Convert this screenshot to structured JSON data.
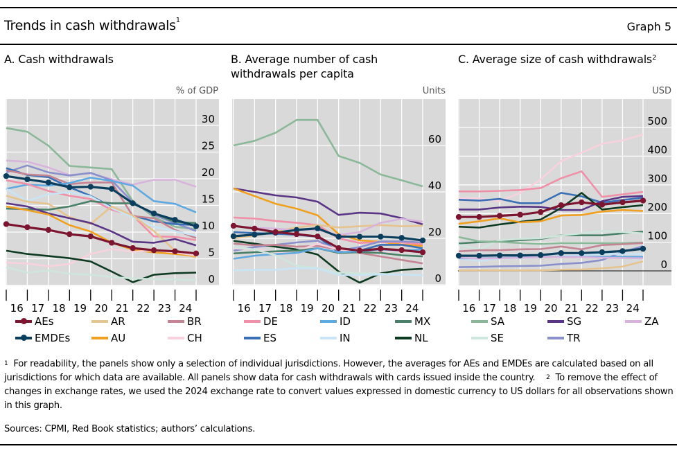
{
  "header": {
    "title": "Trends in cash withdrawals",
    "title_footnote": "1",
    "graph_number": "Graph 5"
  },
  "panels": [
    {
      "title": "A. Cash withdrawals",
      "footnote": "",
      "unit": "% of GDP"
    },
    {
      "title": "B. Average number of cash withdrawals per capita",
      "footnote": "",
      "unit": "Units"
    },
    {
      "title": "C. Average size of cash withdrawals",
      "footnote": "2",
      "unit": "USD"
    }
  ],
  "legend": [
    {
      "key": "AEs",
      "label": "AEs",
      "color": "#7b1530",
      "markers": true
    },
    {
      "key": "EMDEs",
      "label": "EMDEs",
      "color": "#0b3d5c",
      "markers": true
    },
    {
      "key": "AR",
      "label": "AR",
      "color": "#e5c490",
      "markers": false
    },
    {
      "key": "AU",
      "label": "AU",
      "color": "#f0a020",
      "markers": false
    },
    {
      "key": "BR",
      "label": "BR",
      "color": "#c48494",
      "markers": false
    },
    {
      "key": "CH",
      "label": "CH",
      "color": "#f8d2dc",
      "markers": false
    },
    {
      "key": "DE",
      "label": "DE",
      "color": "#f090a8",
      "markers": false
    },
    {
      "key": "ES",
      "label": "ES",
      "color": "#3a6fb5",
      "markers": false
    },
    {
      "key": "ID",
      "label": "ID",
      "color": "#60a8e0",
      "markers": false
    },
    {
      "key": "IN",
      "label": "IN",
      "color": "#c8e4f5",
      "markers": false
    },
    {
      "key": "MX",
      "label": "MX",
      "color": "#4a8068",
      "markers": false
    },
    {
      "key": "NL",
      "label": "NL",
      "color": "#0e3a22",
      "markers": false
    },
    {
      "key": "SA",
      "label": "SA",
      "color": "#8cb89a",
      "markers": false
    },
    {
      "key": "SE",
      "label": "SE",
      "color": "#cfe6dc",
      "markers": false
    },
    {
      "key": "SG",
      "label": "SG",
      "color": "#5a3585",
      "markers": false
    },
    {
      "key": "TR",
      "label": "TR",
      "color": "#8a90cc",
      "markers": false
    },
    {
      "key": "ZA",
      "label": "ZA",
      "color": "#d8b4dc",
      "markers": false
    }
  ],
  "chart_data": [
    {
      "type": "line",
      "title": "A. Cash withdrawals",
      "ylabel": "% of GDP",
      "xlabel": "",
      "x_tick_labels": [
        "16",
        "17",
        "18",
        "19",
        "20",
        "21",
        "22",
        "23",
        "24"
      ],
      "n_points": 10,
      "ylim": [
        0,
        30
      ],
      "yticks": [
        0,
        5,
        10,
        15,
        20,
        25,
        30
      ],
      "y_axis_side": "right",
      "grid": true,
      "series": [
        {
          "name": "SA",
          "values": [
            29.5,
            28.8,
            26.2,
            22.4,
            22.1,
            21.8,
            15.8,
            12.8,
            11.0,
            10.5
          ]
        },
        {
          "name": "ZA",
          "values": [
            23.4,
            23.2,
            22.1,
            20.7,
            21.0,
            19.9,
            18.9,
            19.8,
            19.8,
            18.5
          ]
        },
        {
          "name": "TR",
          "values": [
            21.2,
            22.5,
            21.2,
            20.6,
            21.1,
            19.7,
            15.6,
            13.2,
            11.7,
            10.2
          ]
        },
        {
          "name": "ES",
          "values": [
            22.0,
            20.7,
            20.3,
            18.4,
            16.8,
            14.7,
            13.1,
            12.0,
            11.5,
            11.3
          ]
        },
        {
          "name": "BR",
          "values": [
            21.6,
            20.8,
            20.6,
            19.0,
            19.3,
            19.3,
            13.0,
            12.6,
            10.4,
            8.9
          ]
        },
        {
          "name": "ID",
          "values": [
            18.1,
            18.9,
            18.7,
            19.2,
            20.2,
            19.6,
            18.7,
            15.8,
            15.3,
            13.7
          ]
        },
        {
          "name": "DE",
          "values": [
            19.7,
            19.0,
            17.7,
            16.8,
            16.2,
            14.2,
            13.1,
            9.2,
            9.1,
            8.5
          ]
        },
        {
          "name": "IN",
          "values": [
            18.1,
            15.8,
            17.1,
            17.5,
            16.7,
            14.5,
            12.8,
            11.0,
            10.2,
            9.3
          ]
        },
        {
          "name": "AR",
          "values": [
            16.8,
            15.7,
            15.3,
            12.8,
            11.5,
            14.8,
            13.1,
            10.2,
            6.5,
            5.2
          ]
        },
        {
          "name": "MX",
          "values": [
            14.4,
            14.3,
            14.2,
            14.8,
            15.8,
            15.4,
            15.4,
            13.5,
            11.9,
            11.7
          ]
        },
        {
          "name": "SG",
          "values": [
            15.4,
            14.8,
            13.5,
            12.6,
            11.7,
            10.1,
            8.2,
            8.0,
            8.7,
            7.5
          ]
        },
        {
          "name": "AU",
          "values": [
            14.8,
            14.1,
            13.3,
            11.3,
            10.1,
            8.0,
            6.7,
            6.2,
            5.9,
            5.5
          ]
        },
        {
          "name": "CH",
          "values": [
            4.3,
            4.1,
            3.6,
            4.0,
            5.9,
            6.8,
            6.3,
            6.6,
            6.2,
            5.6
          ]
        },
        {
          "name": "NL",
          "values": [
            6.5,
            5.9,
            5.5,
            5.1,
            4.5,
            2.6,
            0.6,
            2.0,
            2.3,
            2.4
          ]
        },
        {
          "name": "SE",
          "values": [
            3.4,
            2.4,
            2.8,
            2.2,
            2.0,
            1.6,
            1.3,
            1.2,
            1.1,
            1.0
          ]
        },
        {
          "name": "EMDEs",
          "values": [
            20.5,
            19.9,
            19.3,
            18.4,
            18.5,
            18.1,
            15.4,
            13.5,
            12.3,
            11.1
          ]
        },
        {
          "name": "AEs",
          "values": [
            11.5,
            10.9,
            10.4,
            9.6,
            9.2,
            8.0,
            7.0,
            6.6,
            6.4,
            6.0
          ]
        }
      ]
    },
    {
      "type": "line",
      "title": "B. Average number of cash withdrawals per capita",
      "ylabel": "Units",
      "xlabel": "",
      "x_tick_labels": [
        "16",
        "17",
        "18",
        "19",
        "20",
        "21",
        "22",
        "23",
        "24"
      ],
      "n_points": 10,
      "ylim": [
        0,
        80
      ],
      "yticks": [
        0,
        20,
        40,
        60
      ],
      "y_axis_side": "right",
      "grid": true,
      "series": [
        {
          "name": "SA",
          "values": [
            60.0,
            62.0,
            65.5,
            71.0,
            71.0,
            55.5,
            52.5,
            47.5,
            45.0,
            42.4
          ]
        },
        {
          "name": "SG",
          "values": [
            41.5,
            40.0,
            38.5,
            37.6,
            35.8,
            30.1,
            31.0,
            30.7,
            28.7,
            26.0
          ]
        },
        {
          "name": "AU",
          "values": [
            41.5,
            38.2,
            34.9,
            32.8,
            29.9,
            21.8,
            19.1,
            18.5,
            17.3,
            16.7
          ]
        },
        {
          "name": "DE",
          "values": [
            29.0,
            28.5,
            27.5,
            26.7,
            25.7,
            20.0,
            18.0,
            18.4,
            18.2,
            17.4
          ]
        },
        {
          "name": "AR",
          "values": [
            20.0,
            21.2,
            23.0,
            24.7,
            25.7,
            24.7,
            25.2,
            25.7,
            25.2,
            25.4
          ]
        },
        {
          "name": "ZA",
          "values": [
            25.2,
            24.5,
            24.2,
            23.4,
            23.7,
            21.4,
            22.7,
            26.7,
            28.4,
            27.2
          ]
        },
        {
          "name": "ES",
          "values": [
            22.7,
            22.2,
            22.0,
            21.5,
            20.7,
            14.0,
            14.7,
            17.2,
            17.2,
            15.7
          ]
        },
        {
          "name": "TR",
          "values": [
            14.7,
            16.2,
            17.2,
            18.2,
            19.0,
            14.7,
            16.2,
            18.7,
            18.7,
            18.2
          ]
        },
        {
          "name": "NL",
          "values": [
            18.9,
            17.7,
            16.4,
            15.2,
            13.0,
            5.7,
            0.9,
            4.9,
            6.4,
            6.9
          ]
        },
        {
          "name": "BR",
          "values": [
            17.7,
            17.0,
            17.2,
            16.4,
            16.7,
            15.2,
            13.7,
            12.2,
            10.7,
            9.2
          ]
        },
        {
          "name": "CH",
          "values": [
            15.7,
            15.2,
            14.0,
            14.4,
            17.7,
            15.2,
            14.0,
            14.7,
            14.4,
            14.2
          ]
        },
        {
          "name": "MX",
          "values": [
            13.5,
            14.0,
            14.4,
            14.7,
            15.7,
            13.7,
            14.0,
            13.7,
            12.7,
            12.2
          ]
        },
        {
          "name": "ID",
          "values": [
            11.2,
            12.5,
            13.2,
            13.7,
            15.7,
            14.0,
            14.4,
            15.2,
            14.7,
            15.2
          ]
        },
        {
          "name": "SE",
          "values": [
            16.2,
            15.2,
            12.7,
            8.2,
            7.2,
            5.2,
            5.0,
            4.7,
            4.4,
            4.2
          ]
        },
        {
          "name": "IN",
          "values": [
            6.2,
            6.4,
            6.4,
            7.2,
            7.0,
            4.2,
            4.2,
            4.4,
            4.4,
            4.0
          ]
        },
        {
          "name": "EMDEs",
          "values": [
            20.9,
            21.6,
            22.4,
            23.6,
            24.3,
            20.7,
            20.7,
            20.7,
            20.2,
            19.1
          ]
        },
        {
          "name": "AEs",
          "values": [
            25.4,
            24.2,
            22.7,
            21.8,
            20.8,
            15.8,
            14.7,
            15.5,
            14.9,
            14.0
          ]
        }
      ]
    },
    {
      "type": "line",
      "title": "C. Average size of cash withdrawals",
      "ylabel": "USD",
      "xlabel": "",
      "x_tick_labels": [
        "16",
        "17",
        "18",
        "19",
        "20",
        "21",
        "22",
        "23",
        "24"
      ],
      "n_points": 10,
      "ylim": [
        -100,
        600
      ],
      "yticks": [
        0,
        100,
        200,
        300,
        400,
        500
      ],
      "y_axis_side": "right",
      "grid": true,
      "zero_line": true,
      "series": [
        {
          "name": "CH",
          "values": [
            253,
            253,
            243,
            272,
            318,
            383,
            412,
            443,
            455,
            475
          ]
        },
        {
          "name": "DE",
          "values": [
            277,
            277,
            279,
            282,
            289,
            323,
            347,
            258,
            267,
            275
          ]
        },
        {
          "name": "ES",
          "values": [
            248,
            245,
            251,
            236,
            236,
            272,
            260,
            238,
            247,
            255
          ]
        },
        {
          "name": "SG",
          "values": [
            214,
            214,
            221,
            224,
            223,
            212,
            212,
            243,
            258,
            261
          ]
        },
        {
          "name": "NL",
          "values": [
            154,
            151,
            162,
            171,
            179,
            219,
            272,
            214,
            222,
            229
          ]
        },
        {
          "name": "AU",
          "values": [
            164,
            173,
            183,
            169,
            173,
            193,
            195,
            207,
            212,
            209
          ]
        },
        {
          "name": "MX",
          "values": [
            96,
            100,
            103,
            107,
            111,
            124,
            124,
            124,
            131,
            137
          ]
        },
        {
          "name": "SE",
          "values": [
            91,
            75,
            107,
            111,
            114,
            123,
            131,
            139,
            135,
            131
          ]
        },
        {
          "name": "SA",
          "values": [
            118,
            103,
            101,
            97,
            94,
            97,
            97,
            97,
            97,
            99
          ]
        },
        {
          "name": "BR",
          "values": [
            68,
            72,
            72,
            75,
            76,
            85,
            75,
            90,
            93,
            97
          ]
        },
        {
          "name": "TR",
          "values": [
            13,
            14,
            16,
            17,
            18,
            24,
            28,
            38,
            66,
            86
          ]
        },
        {
          "name": "IN",
          "values": [
            43,
            35,
            43,
            45,
            47,
            51,
            55,
            59,
            59,
            59
          ]
        },
        {
          "name": "ID",
          "values": [
            44,
            44,
            45,
            47,
            49,
            49,
            49,
            49,
            49,
            49
          ]
        },
        {
          "name": "ZA",
          "values": [
            46,
            43,
            44,
            46,
            48,
            48,
            48,
            46,
            45,
            44
          ]
        },
        {
          "name": "AR",
          "values": [
            2,
            2,
            2,
            2,
            2,
            4,
            5,
            9,
            15,
            33
          ]
        },
        {
          "name": "EMDEs",
          "values": [
            53,
            53,
            54,
            54,
            55,
            62,
            62,
            65,
            69,
            77
          ]
        },
        {
          "name": "AEs",
          "values": [
            188,
            188,
            192,
            196,
            205,
            229,
            239,
            231,
            239,
            245
          ]
        }
      ]
    }
  ],
  "footnotes": {
    "note1_marker": "1",
    "note1_text": "For readability, the panels show only a selection of individual jurisdictions. However, the averages for AEs and EMDEs are calculated based on all jurisdictions for which data are available. All panels show data for cash withdrawals with cards issued inside the country.",
    "note2_marker": "2",
    "note2_text": "To remove the effect of changes in exchange rates, we used the 2024 exchange rate to convert values expressed in domestic currency to US dollars for all observations shown in this graph.",
    "sources": "Sources: CPMI, Red Book statistics; authors’ calculations."
  }
}
